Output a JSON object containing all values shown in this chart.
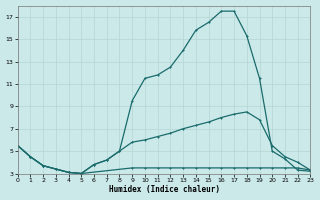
{
  "xlabel": "Humidex (Indice chaleur)",
  "bg_color": "#cce9ea",
  "grid_color": "#b8d8d8",
  "line_color": "#1a6b6b",
  "xmin": 0,
  "xmax": 23,
  "ymin": 3,
  "ymax": 18,
  "yticks": [
    3,
    5,
    7,
    9,
    11,
    13,
    15,
    17
  ],
  "xticks": [
    0,
    1,
    2,
    3,
    4,
    5,
    6,
    7,
    8,
    9,
    10,
    11,
    12,
    13,
    14,
    15,
    16,
    17,
    18,
    19,
    20,
    21,
    22,
    23
  ],
  "curve1_x": [
    0,
    1,
    2,
    3,
    4,
    5,
    6,
    7,
    8,
    9,
    10,
    11,
    12,
    13,
    14,
    15,
    16,
    17,
    18,
    19,
    20,
    21,
    22,
    23
  ],
  "curve1_y": [
    5.5,
    4.5,
    3.7,
    3.4,
    3.1,
    3.0,
    3.8,
    4.2,
    5.0,
    9.5,
    11.5,
    11.8,
    12.5,
    14.0,
    15.8,
    16.5,
    17.5,
    17.5,
    15.3,
    11.5,
    5.0,
    4.3,
    3.3,
    3.2
  ],
  "curve2_x": [
    0,
    1,
    2,
    3,
    4,
    5,
    6,
    7,
    8,
    9,
    10,
    11,
    12,
    13,
    14,
    15,
    16,
    17,
    18,
    19,
    20,
    21,
    22,
    23
  ],
  "curve2_y": [
    5.5,
    4.5,
    3.7,
    3.4,
    3.1,
    3.0,
    3.8,
    4.2,
    5.0,
    5.8,
    6.0,
    6.3,
    6.6,
    7.0,
    7.3,
    7.6,
    8.0,
    8.3,
    8.5,
    7.8,
    5.5,
    4.5,
    4.0,
    3.3
  ],
  "curve3_x": [
    0,
    1,
    2,
    3,
    4,
    5,
    9,
    10,
    11,
    12,
    13,
    14,
    15,
    16,
    17,
    18,
    19,
    20,
    21,
    22,
    23
  ],
  "curve3_y": [
    5.5,
    4.5,
    3.7,
    3.4,
    3.1,
    3.0,
    3.5,
    3.5,
    3.5,
    3.5,
    3.5,
    3.5,
    3.5,
    3.5,
    3.5,
    3.5,
    3.5,
    3.5,
    3.5,
    3.5,
    3.3
  ]
}
